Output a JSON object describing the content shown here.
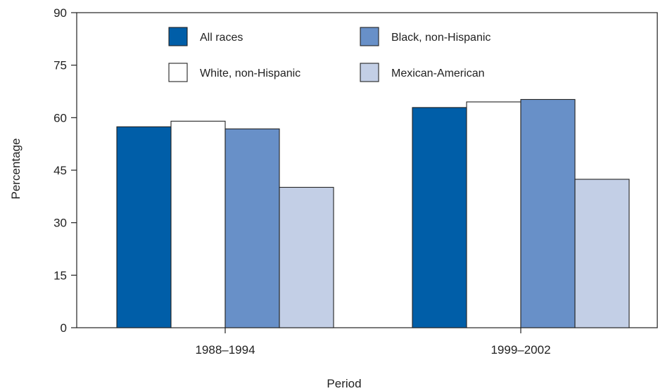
{
  "chart_data": {
    "type": "bar",
    "title": "",
    "xlabel": "Period",
    "ylabel": "Percentage",
    "ylim": [
      0,
      90
    ],
    "yticks": [
      0,
      15,
      30,
      45,
      60,
      75,
      90
    ],
    "yticks_labels": [
      "0",
      "15",
      "30",
      "45",
      "60",
      "75",
      "90"
    ],
    "grid": false,
    "legend_position": "top-center",
    "categories": [
      "1988–1994",
      "1999–2002"
    ],
    "series": [
      {
        "name": "All races",
        "values": [
          57.4,
          62.9
        ],
        "color": "#005ea8"
      },
      {
        "name": "White, non-Hispanic",
        "values": [
          59.0,
          64.5
        ],
        "color": "#ffffff"
      },
      {
        "name": "Black, non-Hispanic",
        "values": [
          56.8,
          65.2
        ],
        "color": "#6890c8"
      },
      {
        "name": "Mexican-American",
        "values": [
          40.1,
          42.4
        ],
        "color": "#c3cfe6"
      }
    ],
    "legend_order": [
      0,
      2,
      1,
      3
    ]
  }
}
